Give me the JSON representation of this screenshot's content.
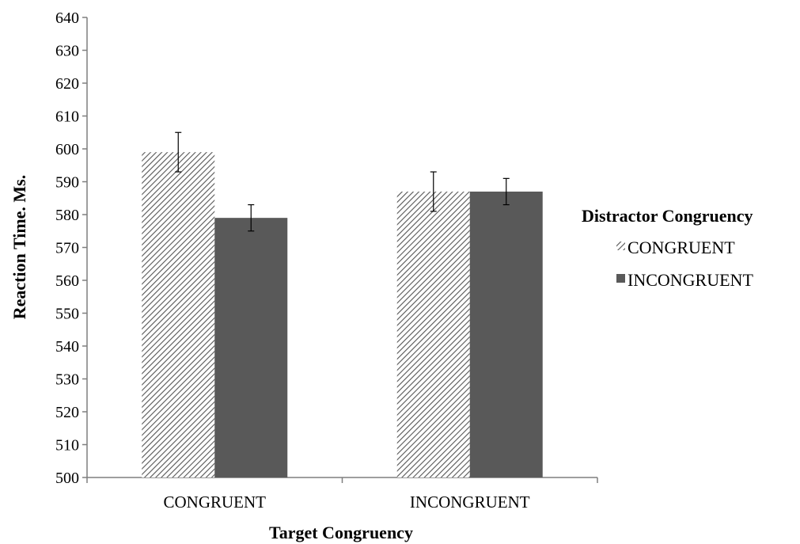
{
  "chart_data": {
    "type": "bar",
    "title": "",
    "xlabel": "Target Congruency",
    "ylabel": "Reaction Time. Ms.",
    "ylim": [
      500,
      640
    ],
    "yticks": [
      500,
      510,
      520,
      530,
      540,
      550,
      560,
      570,
      580,
      590,
      600,
      610,
      620,
      630,
      640
    ],
    "categories": [
      "CONGRUENT",
      "INCONGRUENT"
    ],
    "legend": {
      "title": "Distractor Congruency",
      "placement": "right"
    },
    "grid": false,
    "series": [
      {
        "name": "CONGRUENT",
        "style": "hatched",
        "color": "#555555",
        "values": [
          599,
          587
        ],
        "error": [
          6,
          6
        ]
      },
      {
        "name": "INCONGRUENT",
        "style": "solid",
        "color": "#595959",
        "values": [
          579,
          587
        ],
        "error": [
          4,
          4
        ]
      }
    ]
  }
}
